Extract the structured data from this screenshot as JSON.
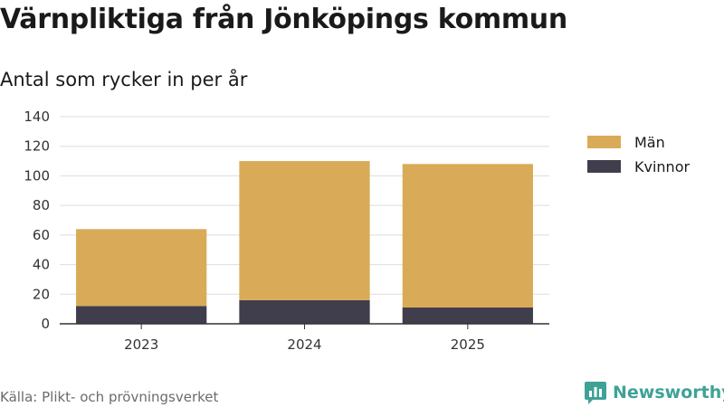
{
  "title": "Värnpliktiga från Jönköpings kommun",
  "subtitle": "Antal som rycker in per år",
  "source": "Källa: Plikt- och prövningsverket",
  "brand": {
    "name": "Newsworthy",
    "icon": "newsworthy-logo-icon",
    "color": "#3fa296"
  },
  "chart_data": {
    "type": "bar",
    "stacked": true,
    "categories": [
      "2023",
      "2024",
      "2025"
    ],
    "series": [
      {
        "name": "Kvinnor",
        "values": [
          12,
          16,
          11
        ],
        "color": "#403e4c"
      },
      {
        "name": "Män",
        "values": [
          52,
          94,
          97
        ],
        "color": "#d9ab58"
      }
    ],
    "ylim": [
      0,
      140
    ],
    "yticks": [
      0,
      20,
      40,
      60,
      80,
      100,
      120,
      140
    ],
    "grid": true,
    "legend_position": "top-right",
    "legend_order": [
      "Män",
      "Kvinnor"
    ]
  }
}
